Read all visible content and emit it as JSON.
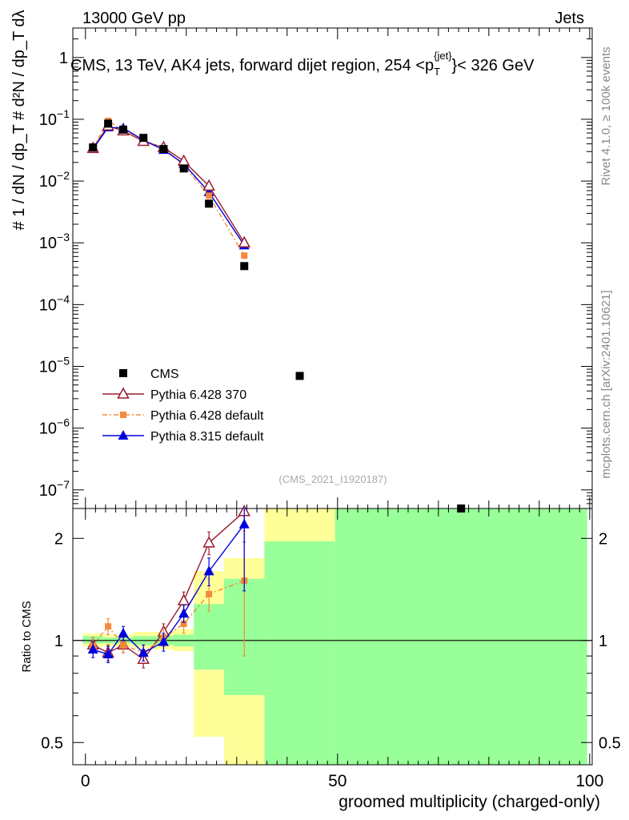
{
  "header": {
    "left": "13000 GeV pp",
    "right": "Jets",
    "title": "CMS, 13 TeV, AK4 jets, forward dijet region, 254 <p",
    "title_sup": "{jet}",
    "title_sub": "T",
    "title_tail": "}< 326 GeV"
  },
  "side_labels": {
    "rivet": "Rivet 4.1.0, ≥ 100k events",
    "mcplots": "mcplots.cern.ch [arXiv:2401.10621]"
  },
  "watermark": "(CMS_2021_I1920187)",
  "colors": {
    "data": "#000000",
    "py6_370": "#9b1b30",
    "py6_default": "#f5893a",
    "py8_default": "#0000dd",
    "band_inner": "#99ff99",
    "band_outer": "#ffff99"
  },
  "chart_data": [
    {
      "type": "scatter",
      "panel": "main",
      "y_scale": "log",
      "ylabel": "# 1 / dN / dp_T # d²N / dp_T dλ",
      "ylim": [
        5e-08,
        3.0
      ],
      "y_ticks": [
        {
          "label": "1",
          "value": 1
        },
        {
          "label": "10",
          "exp": "−1",
          "value": 0.1
        },
        {
          "label": "10",
          "exp": "−2",
          "value": 0.01
        },
        {
          "label": "10",
          "exp": "−3",
          "value": 0.001
        },
        {
          "label": "10",
          "exp": "−4",
          "value": 0.0001
        },
        {
          "label": "10",
          "exp": "−5",
          "value": 1e-05
        },
        {
          "label": "10",
          "exp": "−6",
          "value": 1e-06
        },
        {
          "label": "10",
          "exp": "−7",
          "value": 1e-07
        }
      ],
      "xlim": [
        -2.5,
        100.5
      ],
      "series": [
        {
          "name": "CMS",
          "key": "data",
          "marker": "square",
          "x": [
            1.5,
            4.5,
            7.5,
            11.5,
            15.5,
            19.5,
            24.5,
            31.5,
            42.5,
            74.5
          ],
          "y": [
            0.035,
            0.085,
            0.068,
            0.05,
            0.033,
            0.016,
            0.0043,
            0.00042,
            7e-06,
            5e-08
          ]
        },
        {
          "name": "Pythia 6.428 370",
          "key": "py6_370",
          "marker": "triangle-open",
          "line": "solid",
          "x": [
            1.5,
            4.5,
            7.5,
            11.5,
            15.5,
            19.5,
            24.5,
            31.5
          ],
          "y": [
            0.034,
            0.078,
            0.065,
            0.044,
            0.035,
            0.021,
            0.0083,
            0.001
          ]
        },
        {
          "name": "Pythia 6.428 default",
          "key": "py6_default",
          "marker": "square-small",
          "line": "dashdot",
          "x": [
            1.5,
            4.5,
            7.5,
            11.5,
            15.5,
            19.5,
            24.5,
            31.5
          ],
          "y": [
            0.034,
            0.094,
            0.066,
            0.046,
            0.034,
            0.018,
            0.0058,
            0.00062
          ]
        },
        {
          "name": "Pythia 8.315 default",
          "key": "py8_default",
          "marker": "triangle",
          "line": "solid",
          "x": [
            1.5,
            4.5,
            7.5,
            11.5,
            15.5,
            19.5,
            24.5,
            31.5
          ],
          "y": [
            0.033,
            0.074,
            0.072,
            0.046,
            0.032,
            0.019,
            0.0066,
            0.00091
          ]
        }
      ]
    },
    {
      "type": "scatter",
      "panel": "ratio",
      "xlabel": "groomed multiplicity (charged-only)",
      "ylabel": "Ratio to CMS",
      "y_scale": "log",
      "ylim": [
        0.43,
        2.45
      ],
      "xlim": [
        -2.5,
        100.5
      ],
      "x_ticks": [
        0,
        50,
        100
      ],
      "y_ticks": [
        0.5,
        1,
        2
      ],
      "reference": 1,
      "bands": [
        {
          "x0": -0.5,
          "x1": 3.5,
          "inner": [
            0.98,
            1.03
          ],
          "outer": [
            0.96,
            1.05
          ]
        },
        {
          "x0": 3.5,
          "x1": 5.5,
          "inner": [
            0.98,
            1.02
          ],
          "outer": [
            0.96,
            1.04
          ]
        },
        {
          "x0": 5.5,
          "x1": 9.5,
          "inner": [
            0.98,
            1.02
          ],
          "outer": [
            0.96,
            1.04
          ]
        },
        {
          "x0": 9.5,
          "x1": 13.5,
          "inner": [
            0.97,
            1.03
          ],
          "outer": [
            0.95,
            1.06
          ]
        },
        {
          "x0": 13.5,
          "x1": 17.5,
          "inner": [
            0.97,
            1.03
          ],
          "outer": [
            0.94,
            1.06
          ]
        },
        {
          "x0": 17.5,
          "x1": 21.5,
          "inner": [
            0.96,
            1.04
          ],
          "outer": [
            0.93,
            1.08
          ]
        },
        {
          "x0": 21.5,
          "x1": 27.5,
          "inner": [
            0.82,
            1.28
          ],
          "outer": [
            0.52,
            1.6
          ]
        },
        {
          "x0": 27.5,
          "x1": 35.5,
          "inner": [
            0.69,
            1.52
          ],
          "outer": [
            0.43,
            1.75
          ]
        },
        {
          "x0": 35.5,
          "x1": 49.5,
          "inner": [
            0.43,
            1.96
          ],
          "outer": [
            0.43,
            2.45
          ]
        },
        {
          "x0": 49.5,
          "x1": 99.5,
          "inner": [
            0.43,
            2.45
          ],
          "outer": [
            0.43,
            2.45
          ]
        }
      ],
      "series": [
        {
          "name": "Pythia 6.428 370",
          "key": "py6_370",
          "marker": "triangle-open",
          "line": "solid",
          "x": [
            1.5,
            4.5,
            7.5,
            11.5,
            15.5,
            19.5,
            24.5,
            31.5
          ],
          "y": [
            0.97,
            0.92,
            0.97,
            0.88,
            1.06,
            1.31,
            1.94,
            2.4
          ],
          "err": [
            0.05,
            0.05,
            0.05,
            0.05,
            0.06,
            0.08,
            0.15,
            0.45
          ]
        },
        {
          "name": "Pythia 6.428 default",
          "key": "py6_default",
          "marker": "square-small",
          "line": "dashdot",
          "x": [
            1.5,
            4.5,
            7.5,
            11.5,
            15.5,
            19.5,
            24.5,
            31.5
          ],
          "y": [
            0.97,
            1.1,
            0.97,
            0.92,
            1.02,
            1.12,
            1.37,
            1.5
          ],
          "err": [
            0.05,
            0.06,
            0.05,
            0.05,
            0.06,
            0.07,
            0.15,
            0.6
          ]
        },
        {
          "name": "Pythia 8.315 default",
          "key": "py8_default",
          "marker": "triangle",
          "line": "solid",
          "x": [
            1.5,
            4.5,
            7.5,
            11.5,
            15.5,
            19.5,
            24.5,
            31.5
          ],
          "y": [
            0.94,
            0.91,
            1.05,
            0.92,
            0.99,
            1.2,
            1.6,
            2.2
          ],
          "err": [
            0.05,
            0.05,
            0.05,
            0.05,
            0.06,
            0.07,
            0.15,
            0.8
          ]
        }
      ]
    }
  ]
}
